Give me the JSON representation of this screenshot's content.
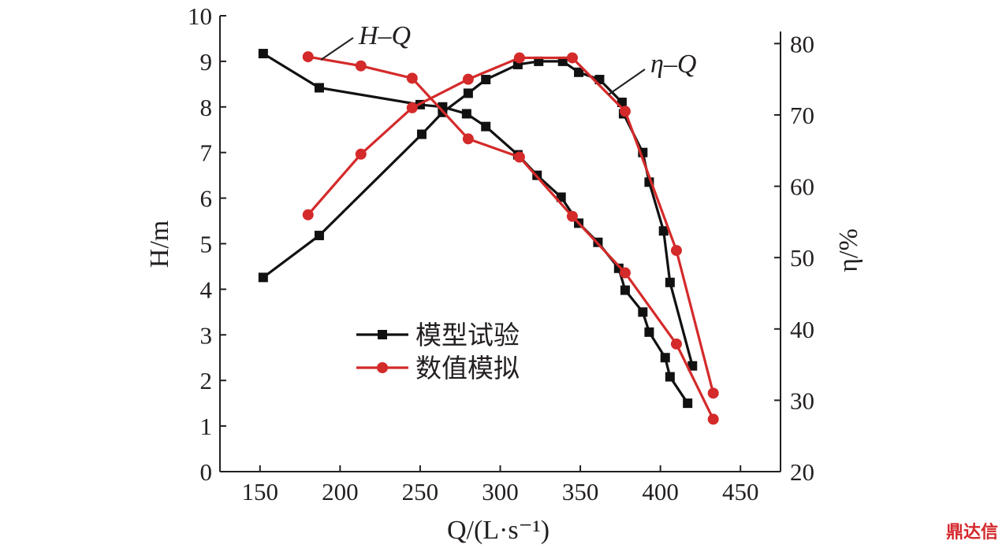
{
  "chart_data": {
    "type": "line",
    "xlabel": "Q/(L·s⁻¹)",
    "ylabel_left": "H/m",
    "ylabel_right": "η/%",
    "xlim": [
      125,
      475
    ],
    "ylim_left": [
      0,
      10
    ],
    "ylim_right": [
      20,
      83.9
    ],
    "xticks": [
      150,
      200,
      250,
      300,
      350,
      400,
      450
    ],
    "yticks_left": [
      0,
      1,
      2,
      3,
      4,
      5,
      6,
      7,
      8,
      9,
      10
    ],
    "yticks_right": [
      20,
      30,
      40,
      50,
      60,
      70,
      80
    ],
    "annotations": [
      {
        "text": "H–Q",
        "curve": "head"
      },
      {
        "text": "η–Q",
        "curve": "efficiency"
      }
    ],
    "legend": [
      {
        "label": "模型试验",
        "color": "#111111",
        "marker": "square"
      },
      {
        "label": "数值模拟",
        "color": "#d42a2a",
        "marker": "circle"
      }
    ],
    "series": [
      {
        "name": "模型试验",
        "curve": "head",
        "axis": "left",
        "x": [
          152,
          187,
          250,
          264,
          279,
          291,
          311,
          323,
          338,
          349,
          361,
          374,
          378,
          389,
          393,
          403,
          406,
          417
        ],
        "y": [
          9.17,
          8.42,
          8.05,
          8.0,
          7.85,
          7.57,
          6.95,
          6.5,
          6.02,
          5.45,
          5.03,
          4.46,
          3.98,
          3.5,
          3.06,
          2.5,
          2.08,
          1.5
        ]
      },
      {
        "name": "模型试验",
        "curve": "efficiency",
        "axis": "left",
        "x": [
          152,
          187,
          251,
          264,
          280,
          291,
          311,
          324,
          339,
          349,
          362,
          376,
          377,
          389,
          393,
          402,
          406,
          420
        ],
        "y": [
          4.26,
          5.18,
          7.4,
          7.88,
          8.3,
          8.6,
          8.93,
          9.0,
          9.0,
          8.76,
          8.6,
          8.1,
          7.85,
          7.0,
          6.35,
          5.28,
          4.15,
          2.32
        ]
      },
      {
        "name": "数值模拟",
        "curve": "head",
        "axis": "left",
        "x": [
          180,
          213,
          245,
          280,
          312,
          345,
          378,
          410,
          433
        ],
        "y": [
          9.1,
          8.9,
          8.63,
          7.3,
          6.9,
          5.6,
          4.36,
          2.8,
          1.15
        ]
      },
      {
        "name": "数值模拟",
        "curve": "efficiency",
        "axis": "right",
        "x": [
          180,
          213,
          245,
          280,
          312,
          345,
          378,
          410,
          433
        ],
        "y": [
          56.0,
          64.5,
          71.0,
          75.0,
          78.0,
          78.0,
          70.5,
          51.0,
          31.0
        ]
      }
    ]
  },
  "watermark": "鼎达信"
}
